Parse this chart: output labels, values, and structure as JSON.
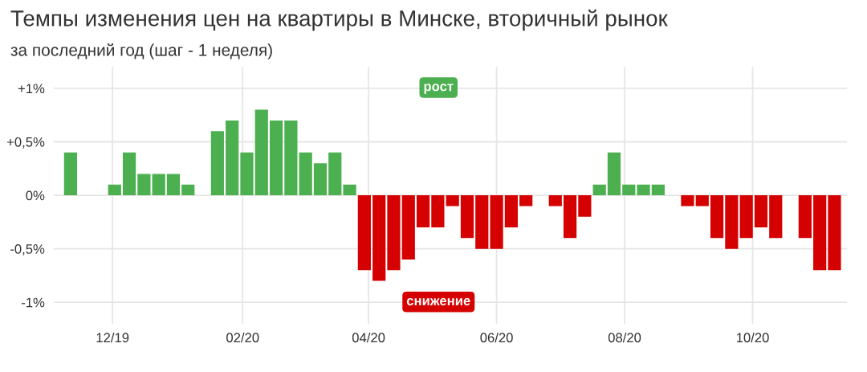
{
  "chart_data": {
    "type": "bar",
    "title": "Темпы изменения цен на квартиры в Минске, вторичный рынок",
    "subtitle": "за последний год (шаг - 1 неделя)",
    "x": [
      "2019-11-11",
      "2019-11-18",
      "2019-11-25",
      "2019-12-02",
      "2019-12-09",
      "2019-12-16",
      "2019-12-23",
      "2019-12-30",
      "2020-01-06",
      "2020-01-13",
      "2020-01-20",
      "2020-01-27",
      "2020-02-03",
      "2020-02-10",
      "2020-02-17",
      "2020-02-24",
      "2020-03-02",
      "2020-03-09",
      "2020-03-16",
      "2020-03-23",
      "2020-03-30",
      "2020-04-06",
      "2020-04-13",
      "2020-04-20",
      "2020-04-27",
      "2020-05-04",
      "2020-05-11",
      "2020-05-18",
      "2020-05-25",
      "2020-06-01",
      "2020-06-08",
      "2020-06-15",
      "2020-06-22",
      "2020-06-29",
      "2020-07-06",
      "2020-07-13",
      "2020-07-20",
      "2020-07-27",
      "2020-08-03",
      "2020-08-10",
      "2020-08-17",
      "2020-08-24",
      "2020-08-31",
      "2020-09-07",
      "2020-09-14",
      "2020-09-21",
      "2020-09-28",
      "2020-10-05",
      "2020-10-12",
      "2020-10-19",
      "2020-10-26",
      "2020-11-02",
      "2020-11-09"
    ],
    "values": [
      0.4,
      null,
      null,
      0.1,
      0.4,
      0.2,
      0.2,
      0.2,
      0.1,
      null,
      0.6,
      0.7,
      0.4,
      0.8,
      0.7,
      0.7,
      0.4,
      0.3,
      0.4,
      0.1,
      -0.7,
      -0.8,
      -0.7,
      -0.6,
      -0.3,
      -0.3,
      -0.1,
      -0.4,
      -0.5,
      -0.5,
      -0.3,
      -0.1,
      null,
      -0.1,
      -0.4,
      -0.2,
      0.1,
      0.4,
      0.1,
      0.1,
      0.1,
      null,
      -0.1,
      -0.1,
      -0.4,
      -0.5,
      -0.4,
      -0.3,
      -0.4,
      null,
      -0.4,
      -0.7,
      -0.7
    ],
    "colors": [
      "#4caf50",
      "#4caf50",
      "#4caf50",
      "#4caf50",
      "#4caf50",
      "#4caf50",
      "#4caf50",
      "#4caf50",
      "#4caf50",
      "#4caf50",
      "#4caf50",
      "#4caf50",
      "#4caf50",
      "#4caf50",
      "#4caf50",
      "#4caf50",
      "#4caf50",
      "#4caf50",
      "#4caf50",
      "#4caf50",
      "#d50000",
      "#d50000",
      "#d50000",
      "#d50000",
      "#d50000",
      "#d50000",
      "#d50000",
      "#d50000",
      "#d50000",
      "#d50000",
      "#d50000",
      "#d50000",
      "#d50000",
      "#d50000",
      "#d50000",
      "#d50000",
      "#4caf50",
      "#4caf50",
      "#4caf50",
      "#4caf50",
      "#4caf50",
      "#4caf50",
      "#d50000",
      "#d50000",
      "#d50000",
      "#d50000",
      "#d50000",
      "#d50000",
      "#d50000",
      "#d50000",
      "#d50000",
      "#d50000",
      "#d50000"
    ],
    "xlim": [
      "2019-11-03",
      "2020-11-15"
    ],
    "xticks": [
      {
        "value": "2019-12-01",
        "label": "12/19"
      },
      {
        "value": "2020-02-01",
        "label": "02/20"
      },
      {
        "value": "2020-04-01",
        "label": "04/20"
      },
      {
        "value": "2020-06-01",
        "label": "06/20"
      },
      {
        "value": "2020-08-01",
        "label": "08/20"
      },
      {
        "value": "2020-10-01",
        "label": "10/20"
      }
    ],
    "ylim": [
      -1.2,
      1.2
    ],
    "yticks": [
      {
        "value": 1,
        "label": "+1%"
      },
      {
        "value": 0.5,
        "label": "+0,5%"
      },
      {
        "value": 0,
        "label": "0%"
      },
      {
        "value": -0.5,
        "label": "-0,5%"
      },
      {
        "value": -1,
        "label": "-1%"
      }
    ],
    "grid": true,
    "annotations": [
      "рост",
      "снижение"
    ]
  }
}
